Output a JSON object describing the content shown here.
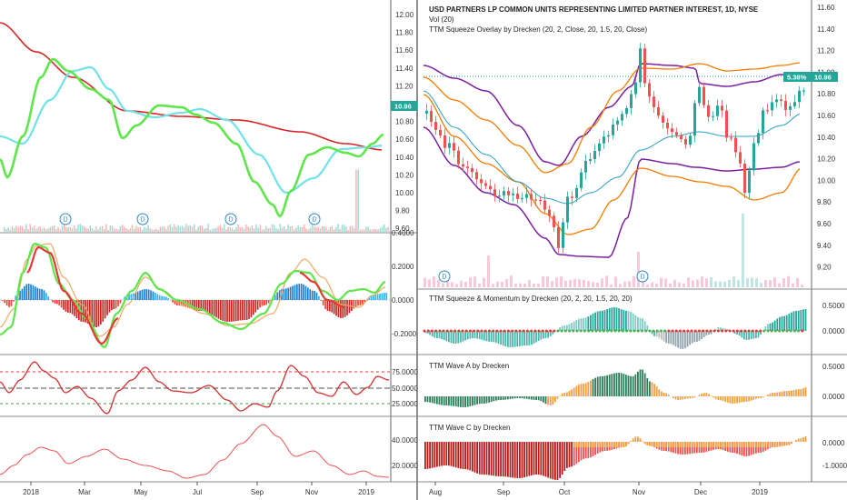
{
  "left_chart": {
    "price_ticks": [
      "12.00",
      "11.80",
      "11.60",
      "11.40",
      "11.20",
      "11.00",
      "10.80",
      "10.60",
      "10.40",
      "10.20",
      "10.00",
      "9.80",
      "9.60"
    ],
    "price_tag": "10.96",
    "osc_ticks": [
      "0.4000",
      "0.2000",
      "0.0000",
      "-0.2000"
    ],
    "rsi_ticks": [
      "75.0000",
      "50.0000",
      "25.0000"
    ],
    "lower_ticks": [
      "40.0000",
      "20.0000"
    ],
    "x_ticks": [
      "2018",
      "Mar",
      "May",
      "Jul",
      "Sep",
      "Nov",
      "2019"
    ],
    "dividend_marker": "D"
  },
  "right_chart": {
    "title": "USD PARTNERS LP COMMON UNITS REPRESENTING LIMITED PARTNER INTEREST, 1D, NYSE",
    "vol_label": "Vol (20)",
    "overlay_label": "TTM Squeeze Overlay by Drecken (20, 2, Close, 20, 1.5, 20, Close)",
    "price_ticks": [
      "11.60",
      "11.40",
      "11.20",
      "11.00",
      "10.80",
      "10.60",
      "10.40",
      "10.20",
      "10.00",
      "9.80",
      "9.60",
      "9.40",
      "9.20"
    ],
    "price_tag_pct": "5.38%",
    "price_tag": "10.96",
    "squeeze_label": "TTM Squeeze & Momentum by Drecken (20, 2, 20, 1.5, 20, 20)",
    "squeeze_ticks": [
      "0.5000",
      "0.0000"
    ],
    "wave_a_label": "TTM Wave A by Drecken",
    "wave_a_ticks": [
      "0.5000",
      "0.0000"
    ],
    "wave_c_label": "TTM Wave C by Drecken",
    "wave_c_ticks": [
      "0.0000",
      "-1.0000"
    ],
    "x_ticks": [
      "Aug",
      "Sep",
      "Oct",
      "Nov",
      "Dec",
      "2019"
    ],
    "dividend_marker": "D"
  },
  "colors": {
    "up": "#26a69a",
    "down": "#ef5350",
    "green_line": "#5ee64a",
    "cyan_line": "#6fe3e6",
    "red_line": "#d92525",
    "purple": "#7b1fa2",
    "orange": "#f57c00",
    "teal_basis": "#26a0c8",
    "tag_bg": "#26a69a"
  },
  "chart_data": [
    {
      "type": "candlestick",
      "title": "USD PARTNERS LP COMMON UNITS REPRESENTING LIMITED PARTNER INTEREST, 1D, NYSE",
      "x_range": [
        "Aug",
        "2019"
      ],
      "ylim": [
        9.1,
        11.65
      ],
      "last_close": 10.96,
      "last_change_pct": 5.38,
      "overlays": [
        "Vol (20)",
        "TTM Squeeze Overlay by Drecken (20, 2, Close, 20, 1.5, 20, Close)"
      ]
    },
    {
      "type": "bar",
      "title": "TTM Squeeze & Momentum by Drecken (20, 2, 20, 1.5, 20, 20)",
      "ylim": [
        -0.3,
        0.65
      ]
    },
    {
      "type": "bar",
      "title": "TTM Wave A by Drecken",
      "ylim": [
        -0.35,
        0.65
      ]
    },
    {
      "type": "bar",
      "title": "TTM Wave C by Drecken",
      "ylim": [
        -1.45,
        0.4
      ]
    },
    {
      "type": "line",
      "x_range": [
        "2018",
        "2019"
      ],
      "ylim": [
        9.6,
        12.1
      ],
      "last_value": 10.96
    }
  ]
}
